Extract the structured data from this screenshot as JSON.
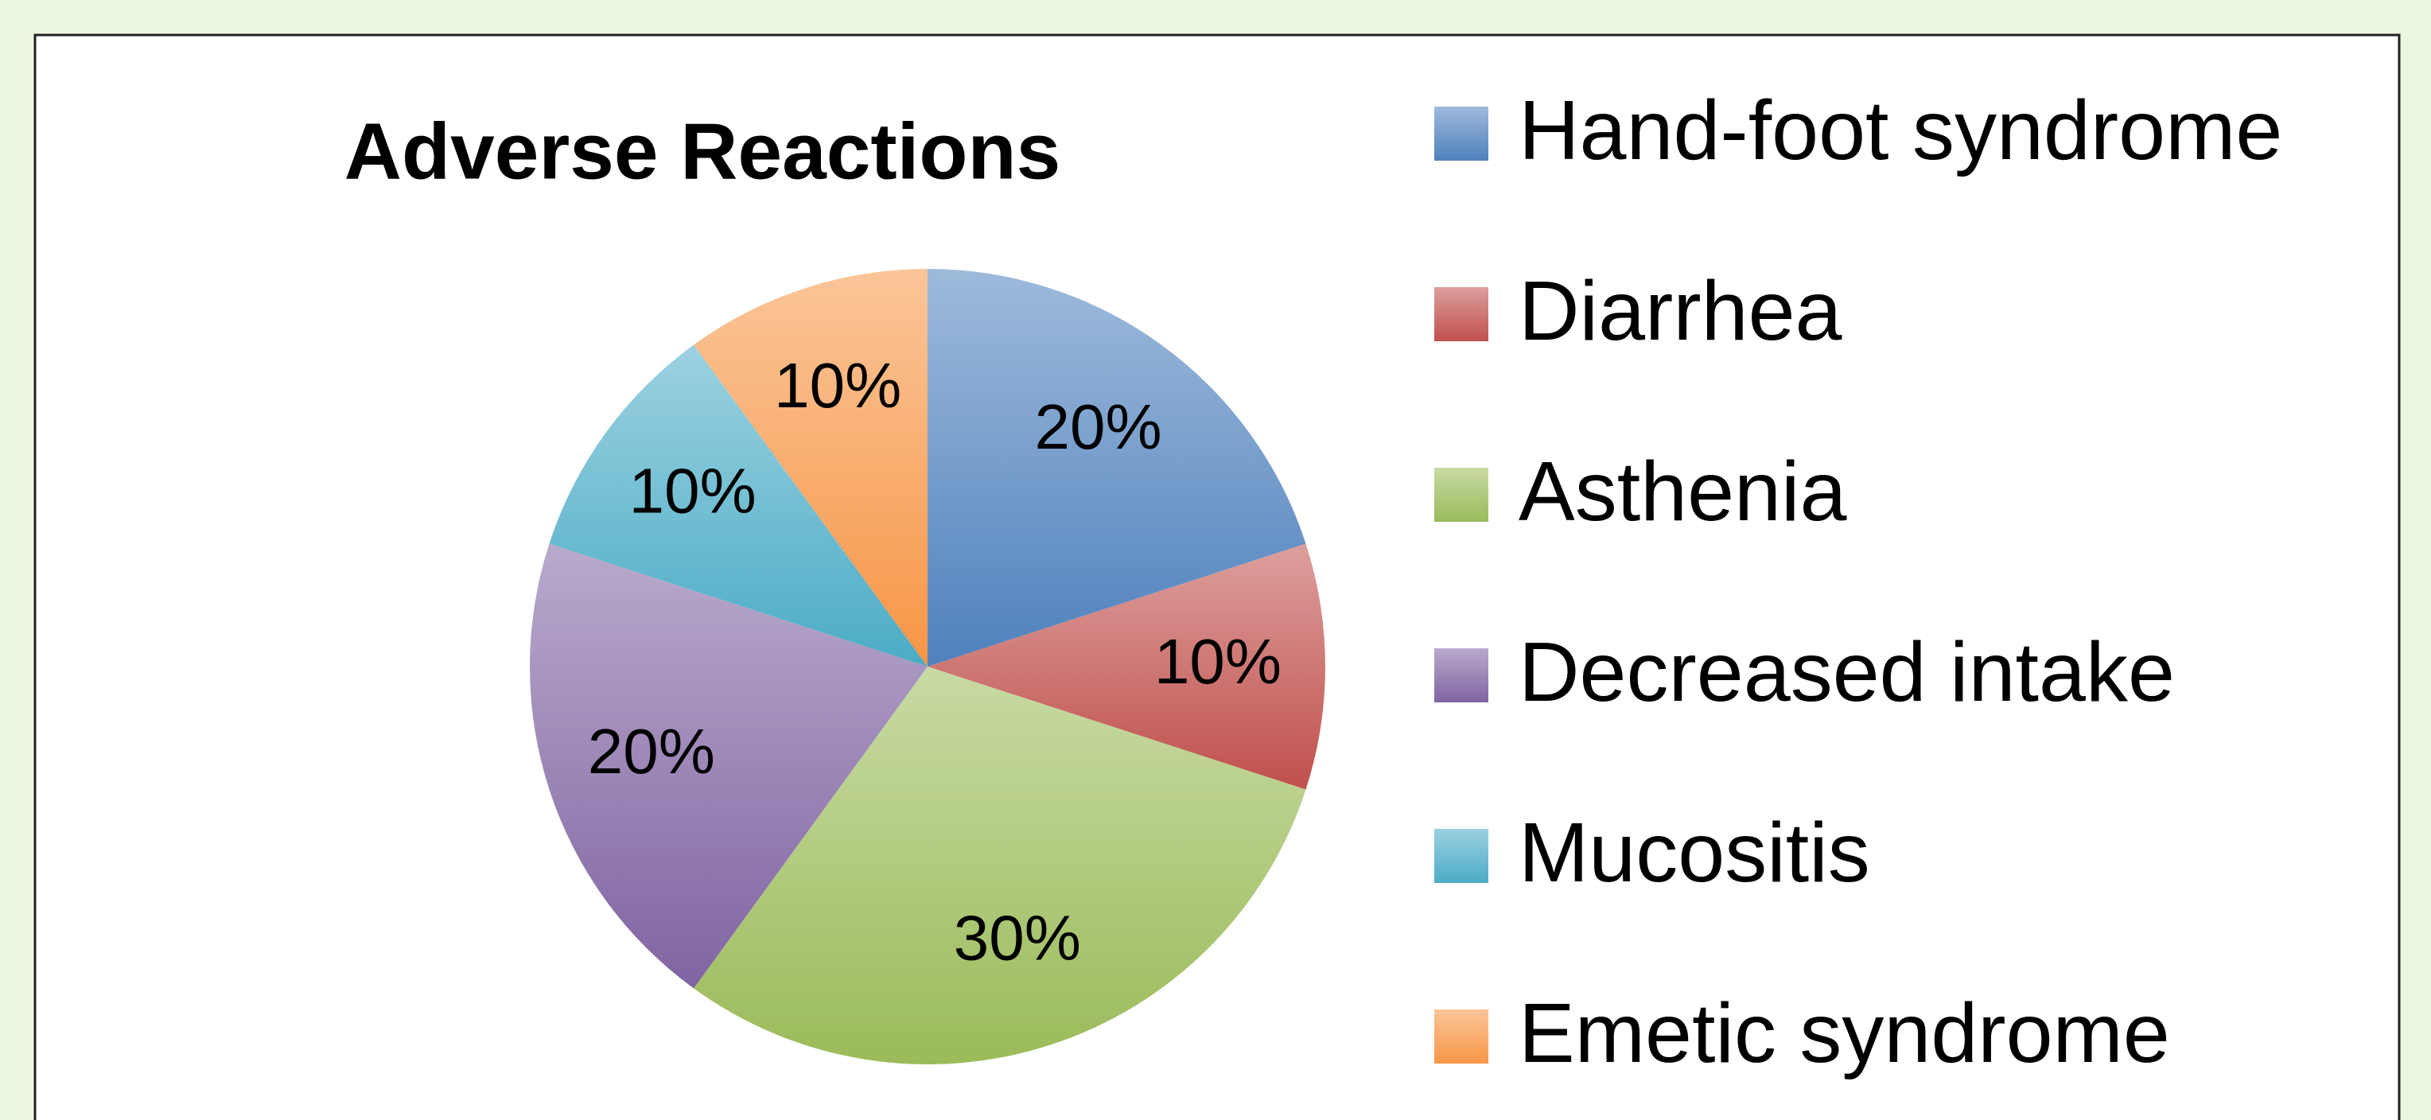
{
  "chart_data": {
    "type": "pie",
    "title": "Adverse Reactions",
    "categories": [
      "Hand-foot syndrome",
      "Diarrhea",
      "Asthenia",
      "Decreased intake",
      "Mucositis",
      "Emetic syndrome"
    ],
    "values": [
      20,
      10,
      30,
      20,
      10,
      10
    ],
    "value_labels": [
      "20%",
      "10%",
      "30%",
      "20%",
      "10%",
      "10%"
    ],
    "colors": [
      "#4f81bd",
      "#c0504d",
      "#9bbb59",
      "#8064a2",
      "#4bacc6",
      "#f79646"
    ],
    "legend": "right"
  }
}
